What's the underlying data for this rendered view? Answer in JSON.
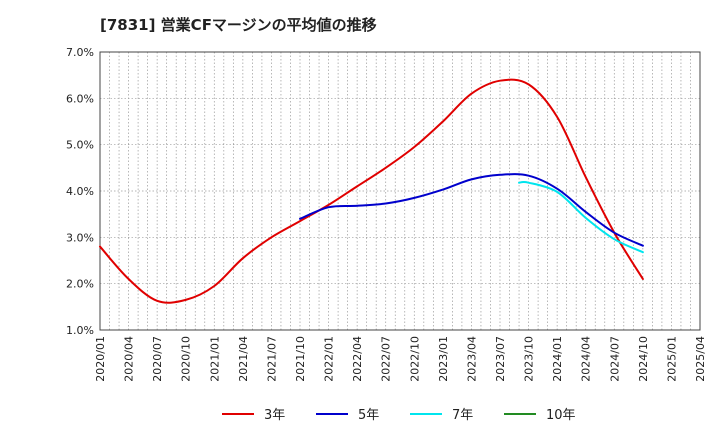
{
  "chart_data": {
    "type": "line",
    "title": "[7831]  営業CFマージンの平均値の推移",
    "x_ticks": [
      "2020/01",
      "2020/04",
      "2020/07",
      "2020/10",
      "2021/01",
      "2021/04",
      "2021/07",
      "2021/10",
      "2022/01",
      "2022/04",
      "2022/07",
      "2022/10",
      "2023/01",
      "2023/04",
      "2023/07",
      "2023/10",
      "2024/01",
      "2024/04",
      "2024/07",
      "2024/10",
      "2025/01",
      "2025/04"
    ],
    "y_ticks": [
      "1.0%",
      "2.0%",
      "3.0%",
      "4.0%",
      "5.0%",
      "6.0%",
      "7.0%"
    ],
    "ylim": [
      1.0,
      7.0
    ],
    "grid": true,
    "legend_position": "bottom",
    "series": [
      {
        "name": "3年",
        "color": "#e00000",
        "points": [
          [
            "2020/01",
            2.8
          ],
          [
            "2020/04",
            2.1
          ],
          [
            "2020/07",
            1.63
          ],
          [
            "2020/10",
            1.65
          ],
          [
            "2021/01",
            1.95
          ],
          [
            "2021/04",
            2.55
          ],
          [
            "2021/07",
            3.0
          ],
          [
            "2021/10",
            3.35
          ],
          [
            "2022/01",
            3.7
          ],
          [
            "2022/04",
            4.1
          ],
          [
            "2022/07",
            4.5
          ],
          [
            "2022/10",
            4.95
          ],
          [
            "2023/01",
            5.5
          ],
          [
            "2023/04",
            6.1
          ],
          [
            "2023/07",
            6.38
          ],
          [
            "2023/10",
            6.3
          ],
          [
            "2024/01",
            5.6
          ],
          [
            "2024/04",
            4.3
          ],
          [
            "2024/07",
            3.1
          ],
          [
            "2024/10",
            2.1
          ]
        ]
      },
      {
        "name": "5年",
        "color": "#0000cc",
        "points": [
          [
            "2021/10",
            3.4
          ],
          [
            "2022/01",
            3.65
          ],
          [
            "2022/04",
            3.68
          ],
          [
            "2022/07",
            3.73
          ],
          [
            "2022/10",
            3.85
          ],
          [
            "2023/01",
            4.03
          ],
          [
            "2023/04",
            4.25
          ],
          [
            "2023/07",
            4.35
          ],
          [
            "2023/10",
            4.33
          ],
          [
            "2024/01",
            4.05
          ],
          [
            "2024/04",
            3.55
          ],
          [
            "2024/07",
            3.1
          ],
          [
            "2024/10",
            2.82
          ]
        ]
      },
      {
        "name": "7年",
        "color": "#00e5ee",
        "points": [
          [
            "2023/09",
            4.18
          ],
          [
            "2023/10",
            4.18
          ],
          [
            "2024/01",
            3.98
          ],
          [
            "2024/04",
            3.42
          ],
          [
            "2024/07",
            2.96
          ],
          [
            "2024/10",
            2.68
          ]
        ]
      },
      {
        "name": "10年",
        "color": "#228b22",
        "points": []
      }
    ]
  }
}
